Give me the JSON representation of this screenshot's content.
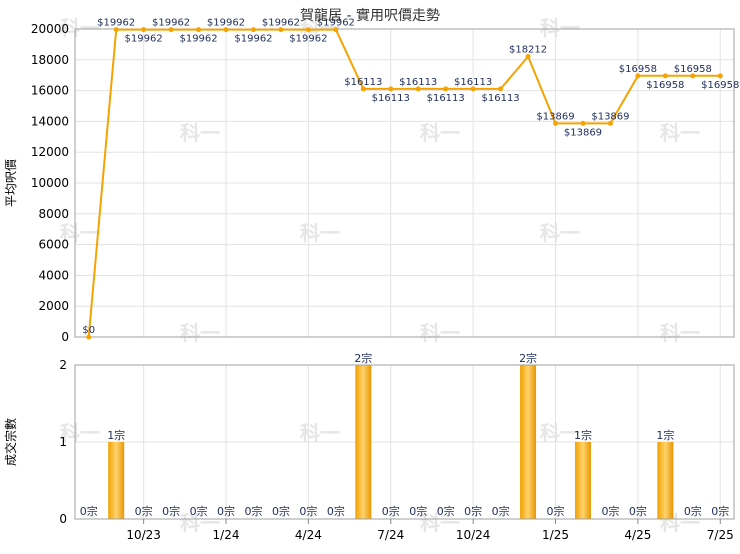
{
  "chart_data": [
    {
      "type": "line",
      "title": "賀龍居 - 實用呎價走勢",
      "ylabel": "平均呎價",
      "ylim": [
        0,
        20000
      ],
      "yticks": [
        0,
        2000,
        4000,
        6000,
        8000,
        10000,
        12000,
        14000,
        16000,
        18000,
        20000
      ],
      "grid": true,
      "color": "#f5a300",
      "series": [
        {
          "values": [
            0,
            19962,
            19962,
            19962,
            19962,
            19962,
            19962,
            19962,
            19962,
            19962,
            16113,
            16113,
            16113,
            16113,
            16113,
            16113,
            18212,
            13869,
            13869,
            13869,
            16958,
            16958,
            16958,
            16958
          ]
        }
      ],
      "point_labels": [
        "$0",
        "$19962",
        "$19962",
        "$19962",
        "$19962",
        "$19962",
        "$19962",
        "$19962",
        "$19962",
        "$19962",
        "$16113",
        "$16113",
        "$16113",
        "$16113",
        "$16113",
        "$16113",
        "$18212",
        "$13869",
        "$13869",
        "$13869",
        "$16958",
        "$16958",
        "$16958",
        "$16958"
      ]
    },
    {
      "type": "bar",
      "ylabel": "成交宗數",
      "ylim": [
        0,
        2
      ],
      "yticks": [
        0,
        1,
        2
      ],
      "grid": true,
      "color": "#f5a300",
      "values": [
        0,
        1,
        0,
        0,
        0,
        0,
        0,
        0,
        0,
        0,
        2,
        0,
        0,
        0,
        0,
        0,
        2,
        0,
        1,
        0,
        0,
        1,
        0,
        0
      ],
      "bar_labels": [
        "0宗",
        "1宗",
        "0宗",
        "0宗",
        "0宗",
        "0宗",
        "0宗",
        "0宗",
        "0宗",
        "0宗",
        "2宗",
        "0宗",
        "0宗",
        "0宗",
        "0宗",
        "0宗",
        "2宗",
        "0宗",
        "1宗",
        "0宗",
        "0宗",
        "1宗",
        "0宗",
        "0宗"
      ]
    }
  ],
  "x_axis": {
    "tick_labels": [
      "10/23",
      "1/24",
      "4/24",
      "7/24",
      "10/24",
      "1/25",
      "4/25",
      "7/25"
    ],
    "tick_indices": [
      2,
      5,
      8,
      11,
      14,
      17,
      20,
      23
    ]
  },
  "watermark": {
    "text": "科一"
  }
}
